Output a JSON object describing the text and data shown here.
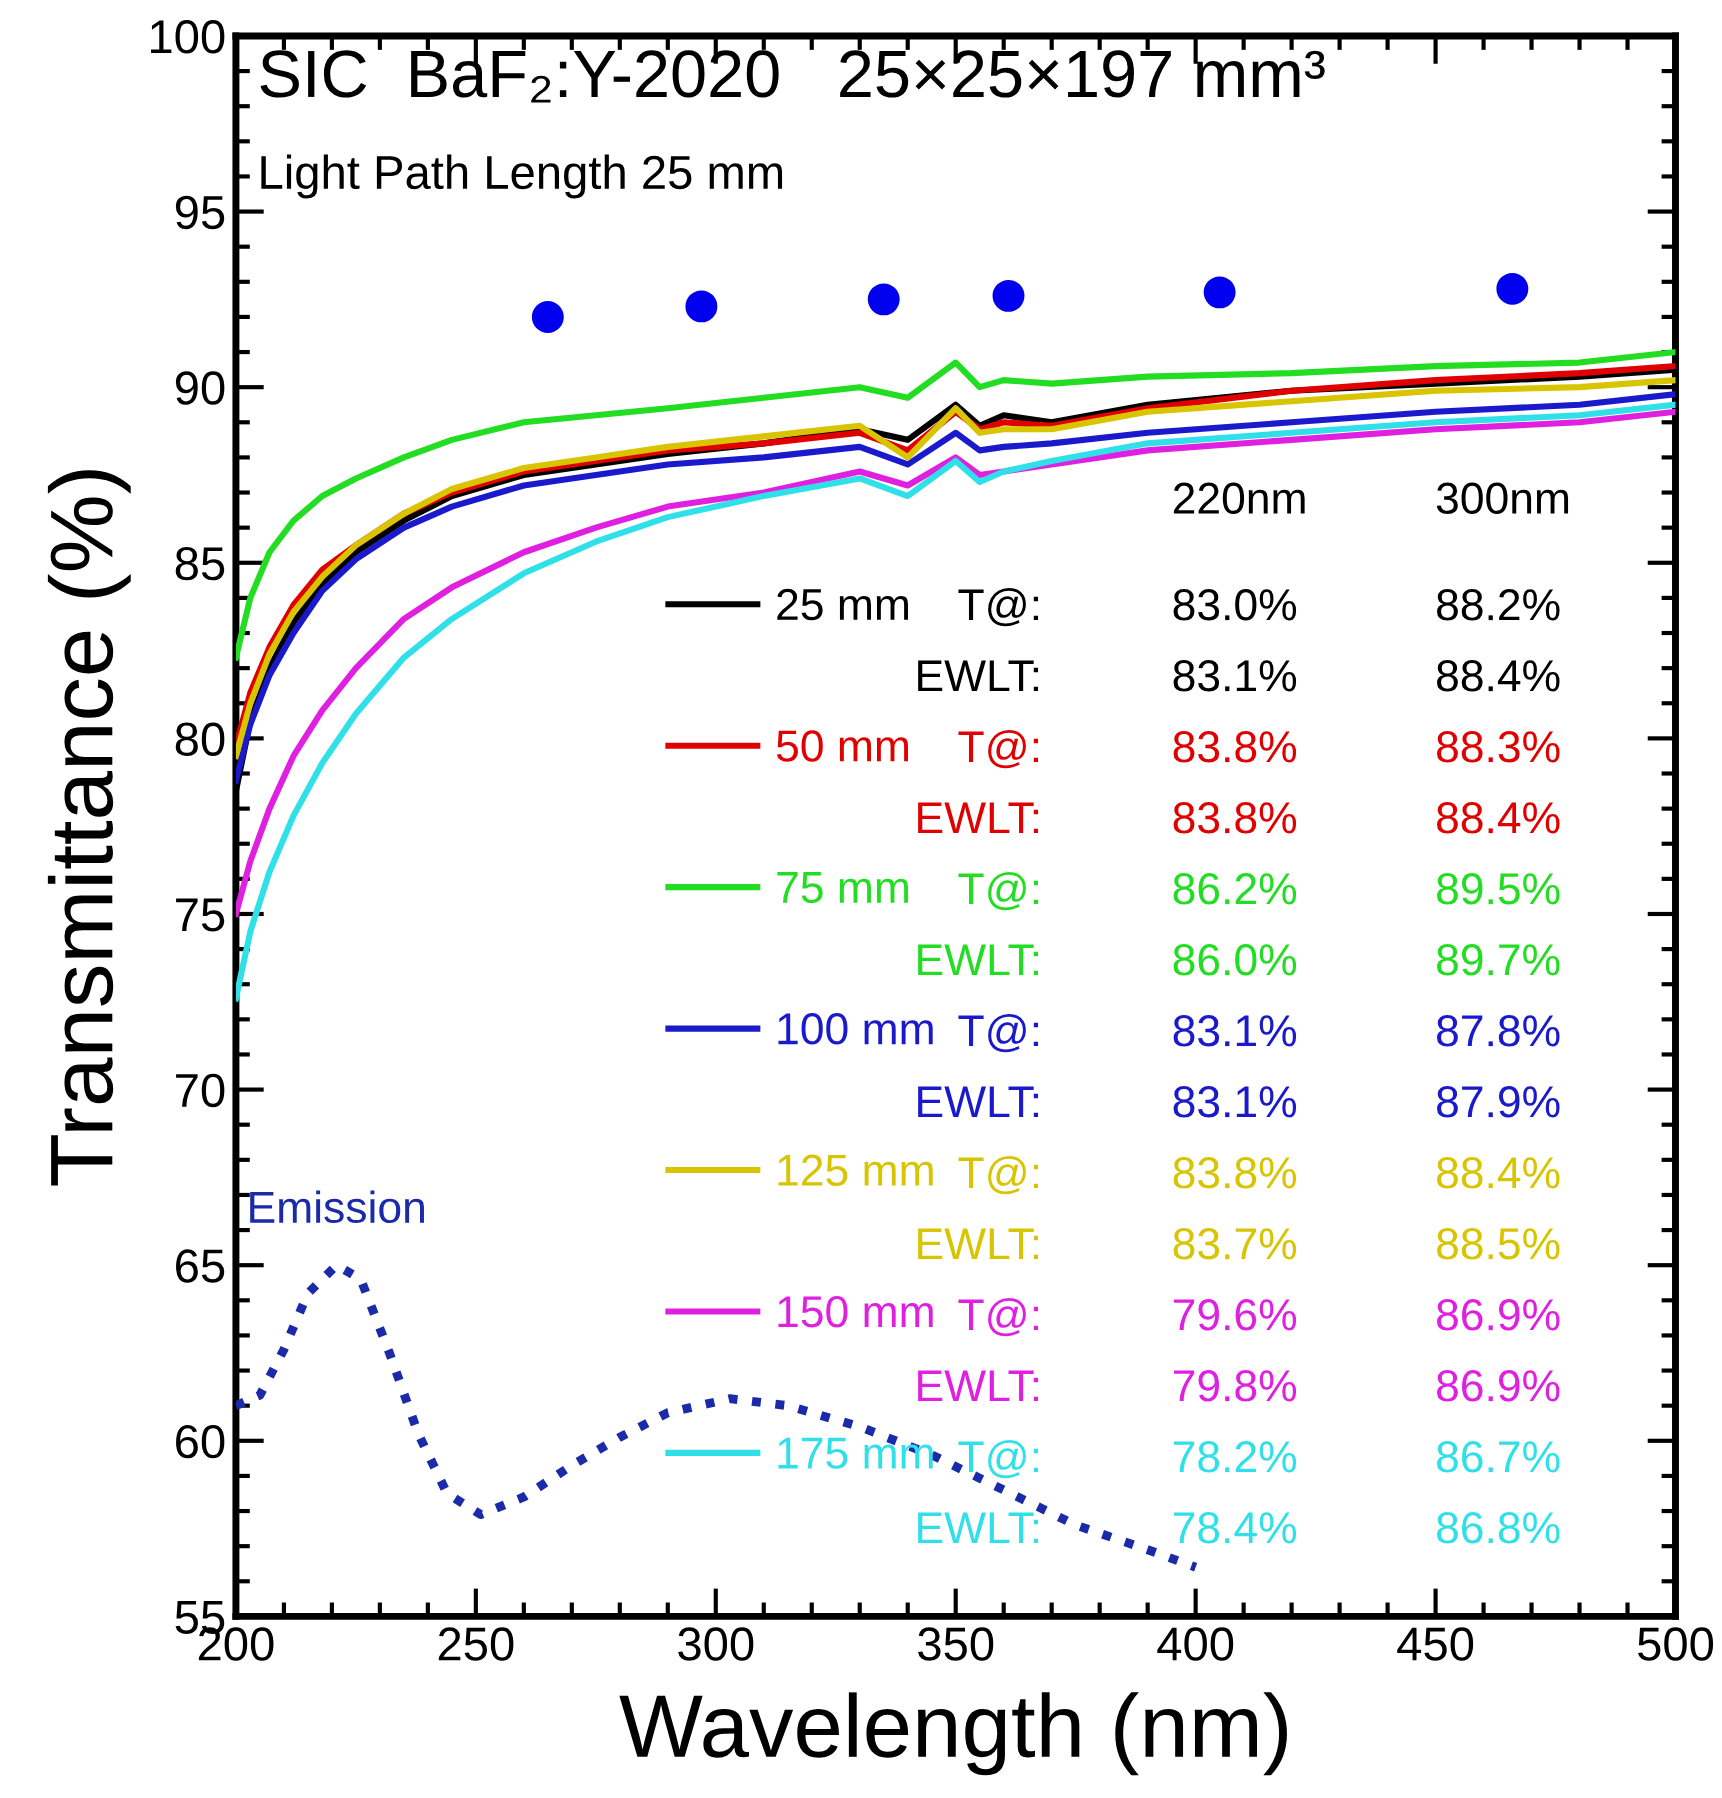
{
  "chart_data": {
    "type": "line",
    "title": "SIC  BaF₂:Y-2020   25×25×197 mm³",
    "subtitle": "Light Path Length 25 mm",
    "xlabel": "Wavelength (nm)",
    "ylabel": "Transmittance (%)",
    "x": [
      200,
      203,
      207,
      212,
      218,
      225,
      235,
      245,
      260,
      275,
      290,
      310,
      330,
      340,
      350,
      355,
      360,
      370,
      390,
      420,
      450,
      480,
      500
    ],
    "series": [
      {
        "name": "25 mm",
        "color": "#000000",
        "values": [
          78.5,
          80.5,
          82.0,
          83.3,
          84.4,
          85.3,
          86.2,
          86.9,
          87.5,
          87.8,
          88.1,
          88.4,
          88.8,
          88.5,
          89.5,
          88.9,
          89.2,
          89.0,
          89.5,
          89.9,
          90.1,
          90.3,
          90.5
        ]
      },
      {
        "name": "50 mm",
        "color": "#e00000",
        "values": [
          79.8,
          81.3,
          82.6,
          83.8,
          84.8,
          85.5,
          86.4,
          87.0,
          87.6,
          87.9,
          88.2,
          88.4,
          88.7,
          88.2,
          89.3,
          88.8,
          89.0,
          88.9,
          89.4,
          89.9,
          90.2,
          90.4,
          90.6
        ]
      },
      {
        "name": "75 mm",
        "color": "#22dd22",
        "values": [
          82.3,
          84.0,
          85.3,
          86.2,
          86.9,
          87.4,
          88.0,
          88.5,
          89.0,
          89.2,
          89.4,
          89.7,
          90.0,
          89.7,
          90.7,
          90.0,
          90.2,
          90.1,
          90.3,
          90.4,
          90.6,
          90.7,
          91.0
        ]
      },
      {
        "name": "100 mm",
        "color": "#1a1acc",
        "values": [
          78.8,
          80.4,
          81.8,
          83.0,
          84.2,
          85.1,
          86.0,
          86.6,
          87.2,
          87.5,
          87.8,
          88.0,
          88.3,
          87.8,
          88.7,
          88.2,
          88.3,
          88.4,
          88.7,
          89.0,
          89.3,
          89.5,
          89.8
        ]
      },
      {
        "name": "125 mm",
        "color": "#d8c400",
        "values": [
          79.5,
          81.0,
          82.4,
          83.6,
          84.6,
          85.5,
          86.4,
          87.1,
          87.7,
          88.0,
          88.3,
          88.6,
          88.9,
          88.0,
          89.4,
          88.7,
          88.8,
          88.8,
          89.3,
          89.6,
          89.9,
          90.0,
          90.2
        ]
      },
      {
        "name": "150 mm",
        "color": "#e020e0",
        "values": [
          75.0,
          76.5,
          78.0,
          79.5,
          80.8,
          82.0,
          83.4,
          84.3,
          85.3,
          86.0,
          86.6,
          87.0,
          87.6,
          87.2,
          88.0,
          87.5,
          87.6,
          87.8,
          88.2,
          88.5,
          88.8,
          89.0,
          89.3
        ]
      },
      {
        "name": "175 mm",
        "color": "#30e0e8",
        "values": [
          72.6,
          74.5,
          76.2,
          77.8,
          79.3,
          80.7,
          82.3,
          83.4,
          84.7,
          85.6,
          86.3,
          86.9,
          87.4,
          86.9,
          87.9,
          87.3,
          87.6,
          87.9,
          88.4,
          88.7,
          89.0,
          89.2,
          89.5
        ]
      },
      {
        "type": "scatter",
        "color": "#0000ee",
        "marker": "circle",
        "x": [
          265,
          297,
          335,
          361,
          405,
          466
        ],
        "values": [
          92.0,
          92.3,
          92.5,
          92.6,
          92.7,
          92.8
        ]
      },
      {
        "color": "#1a2aa8",
        "line_style": "dotted",
        "x": [
          200,
          205,
          210,
          215,
          221,
          226,
          232,
          238,
          244,
          251,
          260,
          270,
          280,
          290,
          303,
          315,
          330,
          345,
          360,
          375,
          390,
          400
        ],
        "values": [
          61.0,
          61.3,
          62.6,
          64.2,
          65.0,
          64.6,
          62.5,
          60.2,
          58.5,
          57.9,
          58.4,
          59.3,
          60.1,
          60.8,
          61.2,
          61.0,
          60.4,
          59.6,
          58.6,
          57.6,
          56.9,
          56.4
        ]
      }
    ],
    "annotations": [
      {
        "text": "Emission",
        "x": 221,
        "y": 65.0
      },
      "220nm",
      "300nm",
      "T@:",
      "83.0%",
      "88.2%",
      "EWLT:",
      "83.1%",
      "88.4%",
      "T@:",
      "83.8%",
      "88.3%",
      "EWLT:",
      "83.8%",
      "88.4%",
      "T@:",
      "86.2%",
      "89.5%",
      "EWLT:",
      "86.0%",
      "89.7%",
      "T@:",
      "83.1%",
      "87.8%",
      "EWLT:",
      "83.1%",
      "87.9%",
      "T@:",
      "83.8%",
      "88.4%",
      "EWLT:",
      "83.7%",
      "88.5%",
      "T@:",
      "79.6%",
      "86.9%",
      "EWLT:",
      "79.8%",
      "86.9%",
      "T@:",
      "78.2%",
      "86.7%",
      "EWLT:",
      "78.4%",
      "86.8%"
    ],
    "xlim": [
      200,
      500
    ],
    "ylim": [
      55,
      100
    ],
    "xticks": [
      200,
      250,
      300,
      350,
      400,
      450,
      500
    ],
    "yticks": [
      55,
      60,
      65,
      70,
      75,
      80,
      85,
      90,
      95,
      100
    ],
    "grid": false,
    "legend": "bottom",
    "line_style": "solid",
    "marker": "none"
  }
}
